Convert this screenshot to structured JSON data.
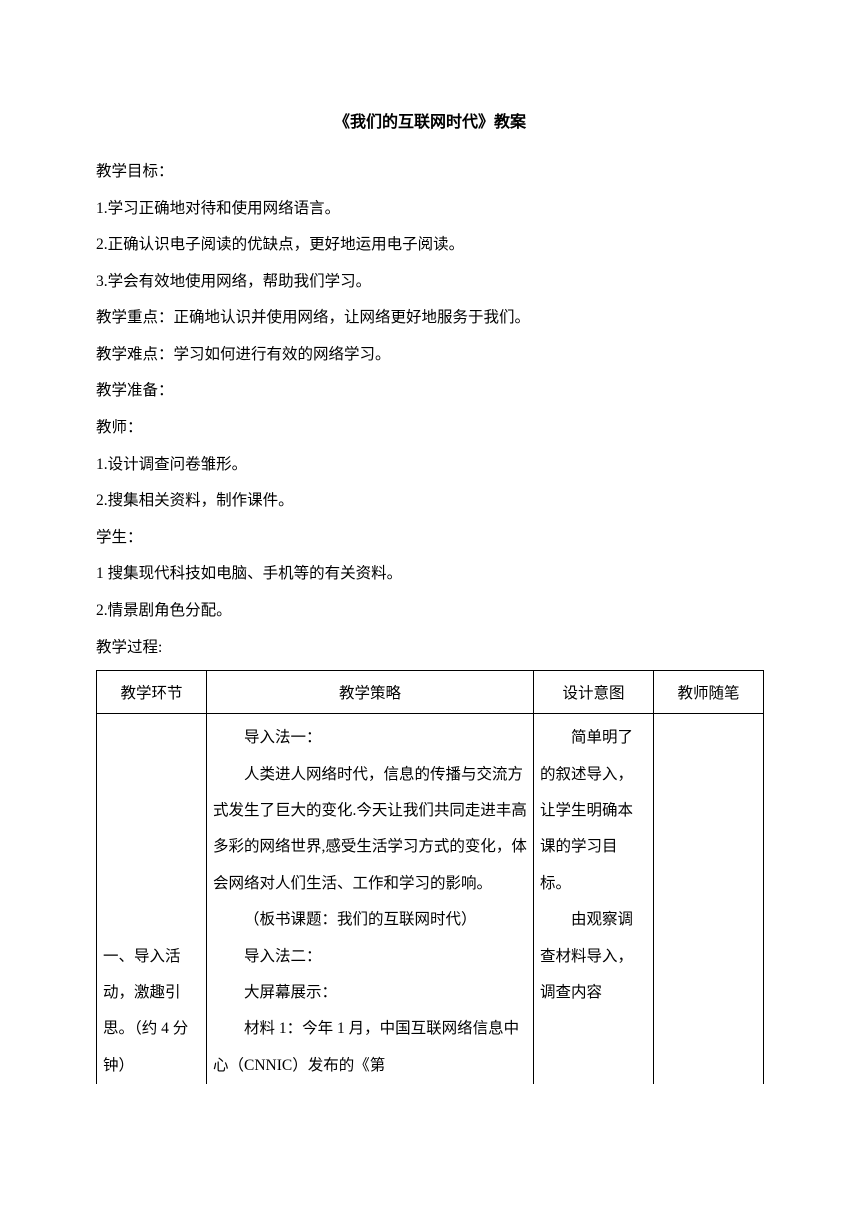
{
  "title": "《我们的互联网时代》教案",
  "goals_heading": "教学目标：",
  "goals": [
    "1.学习正确地对待和使用网络语言。",
    "2.正确认识电子阅读的优缺点，更好地运用电子阅读。",
    "3.学会有效地使用网络，帮助我们学习。"
  ],
  "focus": "教学重点：正确地认识并使用网络，让网络更好地服务于我们。",
  "difficulty": "教学难点：学习如何进行有效的网络学习。",
  "prep_heading": "教学准备：",
  "teacher_label": "教师：",
  "teacher_items": [
    "1.设计调查问卷雏形。",
    "2.搜集相关资料，制作课件。"
  ],
  "student_label": "学生：",
  "student_items": [
    "1 搜集现代科技如电脑、手机等的有关资料。",
    "2.情景剧角色分配。"
  ],
  "process_heading": "教学过程:",
  "table": {
    "headers": [
      "教学环节",
      "教学策略",
      "设计意图",
      "教师随笔"
    ],
    "row1": {
      "col1": "一、导入活动，激趣引思。（约 4 分钟）",
      "col2_lines": [
        "导入法一：",
        "人类进人网络时代，信息的传播与交流方式发生了巨大的变化.今天让我们共同走进丰高多彩的网络世界,感受生活学习方式的变化，体会网络对人们生活、工作和学习的影响。",
        "（板书课题：我们的互联网时代）",
        "导入法二：",
        "大屏幕展示：",
        "材料 1：今年 1 月，中国互联网络信息中心（CNNIC）发布的《第"
      ],
      "col3_lines": [
        "简单明了的叙述导入，让学生明确本课的学习目标。",
        "",
        "",
        "",
        "由观察调查材料导入，调查内容"
      ],
      "col4": ""
    }
  }
}
